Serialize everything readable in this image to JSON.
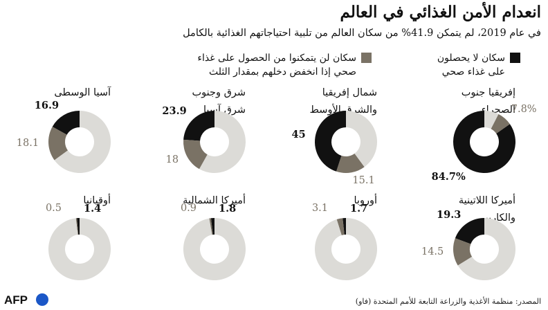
{
  "title": "انعدام الأمن الغذائي في العالم",
  "subtitle": "في عام 2019، لم يتمكن 41.9% من سكان العالم من تلبية احتياجاتهم الغذائية بالكامل",
  "legend": {
    "severe": {
      "line1": "سكان لا يحصلون",
      "line2": "على غذاء صحي",
      "color": "#111111"
    },
    "moderate": {
      "line1": "سكان لن يتمكنوا من الحصول على غذاء",
      "line2": "صحي إذا انخفض دخلهم بمقدار الثلث",
      "color": "#7a7265"
    },
    "remaining_color": "#dcdbd7"
  },
  "source": "المصدر: منظمة الأغذية والزراعة التابعة للأمم المتحدة (فاو)",
  "logo_text": "AFP",
  "chart_data": {
    "type": "pie",
    "variant": "donut",
    "unit": "%",
    "series_order": [
      "severe",
      "moderate"
    ],
    "regions": [
      {
        "name_line1": "إفريقيا جنوب",
        "name_line2": "الصحراء",
        "severe": 84.7,
        "moderate": 7.8,
        "severe_label": "84.7%",
        "moderate_label": "7.8%"
      },
      {
        "name_line1": "شمال إفريقيا",
        "name_line2": "والشرق الأوسط",
        "severe": 45,
        "moderate": 15.1,
        "severe_label": "45",
        "moderate_label": "15.1"
      },
      {
        "name_line1": "شرق وجنوب",
        "name_line2": "شرق آسيا",
        "severe": 23.9,
        "moderate": 18,
        "severe_label": "23.9",
        "moderate_label": "18"
      },
      {
        "name_line1": "آسيا الوسطى",
        "name_line2": "",
        "severe": 16.9,
        "moderate": 18.1,
        "severe_label": "16.9",
        "moderate_label": "18.1"
      },
      {
        "name_line1": "أميركا اللاتينية",
        "name_line2": "والكاريبي",
        "severe": 19.3,
        "moderate": 14.5,
        "severe_label": "19.3",
        "moderate_label": "14.5"
      },
      {
        "name_line1": "أوروبا",
        "name_line2": "",
        "severe": 1.7,
        "moderate": 3.1,
        "severe_label": "1.7",
        "moderate_label": "3.1"
      },
      {
        "name_line1": "أميركا الشمالية",
        "name_line2": "",
        "severe": 1.8,
        "moderate": 0.9,
        "severe_label": "1.8",
        "moderate_label": "0.9"
      },
      {
        "name_line1": "أوقيانيا",
        "name_line2": "",
        "severe": 1.4,
        "moderate": 0.5,
        "severe_label": "1.4",
        "moderate_label": "0.5"
      }
    ]
  }
}
